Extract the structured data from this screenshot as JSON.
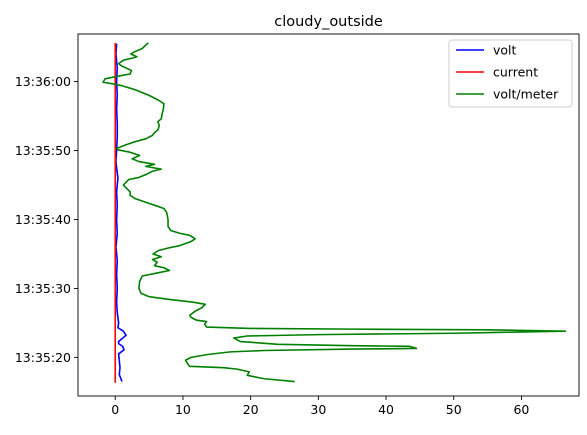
{
  "chart_data": {
    "type": "line",
    "title": "cloudy_outside",
    "xlabel": "",
    "ylabel": "",
    "xlim": [
      -5.5,
      68.5
    ],
    "ylim": [
      "13:35:14.4",
      "13:36:06.9"
    ],
    "xticks": [
      0,
      10,
      20,
      30,
      40,
      50,
      60
    ],
    "xtick_labels": [
      "0",
      "10",
      "20",
      "30",
      "40",
      "50",
      "60"
    ],
    "yticks": [
      "13:35:20",
      "13:35:30",
      "13:35:40",
      "13:35:50",
      "13:36:00"
    ],
    "ytick_labels": [
      "13:35:20",
      "13:35:30",
      "13:35:40",
      "13:35:50",
      "13:36:00"
    ],
    "legend_position": "top-right",
    "grid": false,
    "series": [
      {
        "name": "volt",
        "color": "#0000ff",
        "points": [
          [
            1.0,
            "13:35:16.5"
          ],
          [
            0.6,
            "13:35:17.5"
          ],
          [
            0.7,
            "13:35:18.5"
          ],
          [
            0.6,
            "13:35:19.5"
          ],
          [
            0.5,
            "13:35:20.5"
          ],
          [
            1.3,
            "13:35:21.1"
          ],
          [
            1.1,
            "13:35:21.6"
          ],
          [
            0.5,
            "13:35:22.0"
          ],
          [
            0.5,
            "13:35:22.3"
          ],
          [
            1.6,
            "13:35:23.2"
          ],
          [
            1.2,
            "13:35:23.8"
          ],
          [
            0.4,
            "13:35:24.3"
          ],
          [
            0.5,
            "13:35:25.0"
          ],
          [
            0.3,
            "13:35:26.5"
          ],
          [
            0.2,
            "13:35:28.0"
          ],
          [
            0.3,
            "13:35:30.0"
          ],
          [
            0.2,
            "13:35:32.0"
          ],
          [
            0.3,
            "13:35:34.0"
          ],
          [
            0.1,
            "13:35:36.0"
          ],
          [
            0.3,
            "13:35:38.0"
          ],
          [
            0.2,
            "13:35:40.0"
          ],
          [
            0.3,
            "13:35:42.0"
          ],
          [
            0.2,
            "13:35:44.0"
          ],
          [
            0.4,
            "13:35:46.0"
          ],
          [
            0.2,
            "13:35:47.5"
          ],
          [
            0.1,
            "13:35:48.5"
          ],
          [
            0.2,
            "13:35:50.0"
          ],
          [
            0.3,
            "13:35:52.0"
          ],
          [
            0.3,
            "13:35:54.0"
          ],
          [
            0.2,
            "13:35:56.0"
          ],
          [
            0.3,
            "13:35:58.0"
          ],
          [
            0.2,
            "13:36:00.0"
          ],
          [
            0.3,
            "13:36:02.0"
          ],
          [
            0.1,
            "13:36:04.0"
          ],
          [
            0.2,
            "13:36:05.5"
          ]
        ]
      },
      {
        "name": "current",
        "color": "#ff0000",
        "points": [
          [
            0.0,
            "13:35:16.3"
          ],
          [
            0.0,
            "13:36:05.6"
          ]
        ]
      },
      {
        "name": "volt/meter",
        "color": "#008000",
        "points": [
          [
            26.5,
            "13:35:16.5"
          ],
          [
            22.0,
            "13:35:16.9"
          ],
          [
            19.5,
            "13:35:17.4"
          ],
          [
            19.8,
            "13:35:17.9"
          ],
          [
            18.0,
            "13:35:18.3"
          ],
          [
            16.0,
            "13:35:18.5"
          ],
          [
            11.0,
            "13:35:18.7"
          ],
          [
            10.6,
            "13:35:19.2"
          ],
          [
            10.4,
            "13:35:19.6"
          ],
          [
            11.2,
            "13:35:20.0"
          ],
          [
            13.5,
            "13:35:20.4"
          ],
          [
            17.0,
            "13:35:20.8"
          ],
          [
            22.0,
            "13:35:21.0"
          ],
          [
            35.0,
            "13:35:21.2"
          ],
          [
            44.5,
            "13:35:21.3"
          ],
          [
            43.5,
            "13:35:21.6"
          ],
          [
            35.0,
            "13:35:21.7"
          ],
          [
            24.0,
            "13:35:21.9"
          ],
          [
            18.5,
            "13:35:22.3"
          ],
          [
            17.5,
            "13:35:22.8"
          ],
          [
            19.5,
            "13:35:23.1"
          ],
          [
            30.0,
            "13:35:23.3"
          ],
          [
            50.0,
            "13:35:23.5"
          ],
          [
            66.5,
            "13:35:23.8"
          ],
          [
            55.0,
            "13:35:24.0"
          ],
          [
            35.0,
            "13:35:24.1"
          ],
          [
            20.0,
            "13:35:24.2"
          ],
          [
            13.5,
            "13:35:24.4"
          ],
          [
            13.2,
            "13:35:24.8"
          ],
          [
            13.5,
            "13:35:25.2"
          ],
          [
            12.0,
            "13:35:25.4"
          ],
          [
            11.2,
            "13:35:25.8"
          ],
          [
            11.0,
            "13:35:26.1"
          ],
          [
            11.8,
            "13:35:26.7"
          ],
          [
            12.8,
            "13:35:27.2"
          ],
          [
            13.3,
            "13:35:27.7"
          ],
          [
            11.5,
            "13:35:28.0"
          ],
          [
            8.0,
            "13:35:28.4"
          ],
          [
            5.0,
            "13:35:28.8"
          ],
          [
            3.8,
            "13:35:29.3"
          ],
          [
            3.5,
            "13:35:30.0"
          ],
          [
            3.6,
            "13:35:31.0"
          ],
          [
            4.0,
            "13:35:31.8"
          ],
          [
            6.5,
            "13:35:32.3"
          ],
          [
            8.0,
            "13:35:32.6"
          ],
          [
            7.2,
            "13:35:33.0"
          ],
          [
            5.8,
            "13:35:33.3"
          ],
          [
            6.2,
            "13:35:33.8"
          ],
          [
            5.5,
            "13:35:34.2"
          ],
          [
            6.8,
            "13:35:34.6"
          ],
          [
            5.6,
            "13:35:35.0"
          ],
          [
            6.4,
            "13:35:35.5"
          ],
          [
            8.0,
            "13:35:35.9"
          ],
          [
            9.5,
            "13:35:36.2"
          ],
          [
            11.2,
            "13:35:36.8"
          ],
          [
            11.8,
            "13:35:37.2"
          ],
          [
            11.0,
            "13:35:37.7"
          ],
          [
            9.5,
            "13:35:38.0"
          ],
          [
            8.2,
            "13:35:38.4"
          ],
          [
            7.8,
            "13:35:39.0"
          ],
          [
            7.8,
            "13:35:40.0"
          ],
          [
            7.6,
            "13:35:41.0"
          ],
          [
            7.2,
            "13:35:41.6"
          ],
          [
            6.0,
            "13:35:42.0"
          ],
          [
            4.5,
            "13:35:42.5"
          ],
          [
            3.0,
            "13:35:43.0"
          ],
          [
            2.2,
            "13:35:43.5"
          ],
          [
            2.2,
            "13:35:44.0"
          ],
          [
            1.2,
            "13:35:45.0"
          ],
          [
            2.0,
            "13:35:45.8"
          ],
          [
            3.5,
            "13:35:46.1"
          ],
          [
            4.5,
            "13:35:46.5"
          ],
          [
            5.5,
            "13:35:47.0"
          ],
          [
            6.8,
            "13:35:47.3"
          ],
          [
            4.5,
            "13:35:47.7"
          ],
          [
            5.8,
            "13:35:48.0"
          ],
          [
            3.5,
            "13:35:48.4"
          ],
          [
            2.5,
            "13:35:48.8"
          ],
          [
            3.6,
            "13:35:49.3"
          ],
          [
            2.0,
            "13:35:49.8"
          ],
          [
            0.4,
            "13:35:50.1"
          ],
          [
            0.2,
            "13:35:50.3"
          ],
          [
            1.5,
            "13:35:50.8"
          ],
          [
            3.0,
            "13:35:51.3"
          ],
          [
            4.5,
            "13:35:51.7"
          ],
          [
            5.5,
            "13:35:52.2"
          ],
          [
            5.8,
            "13:35:52.6"
          ],
          [
            6.3,
            "13:35:53.0"
          ],
          [
            6.5,
            "13:35:53.6"
          ],
          [
            6.3,
            "13:35:54.2"
          ],
          [
            6.8,
            "13:35:54.6"
          ],
          [
            6.9,
            "13:35:55.2"
          ],
          [
            7.1,
            "13:35:56.0"
          ],
          [
            7.2,
            "13:35:56.8"
          ],
          [
            6.2,
            "13:35:57.4"
          ],
          [
            5.0,
            "13:35:58.0"
          ],
          [
            3.0,
            "13:35:58.8"
          ],
          [
            1.0,
            "13:35:59.4"
          ],
          [
            -0.5,
            "13:35:59.7"
          ],
          [
            -1.8,
            "13:35:59.9"
          ],
          [
            -1.5,
            "13:36:00.4"
          ],
          [
            0.5,
            "13:36:00.8"
          ],
          [
            2.2,
            "13:36:01.1"
          ],
          [
            2.4,
            "13:36:01.6"
          ],
          [
            0.9,
            "13:36:02.3"
          ],
          [
            0.5,
            "13:36:02.6"
          ],
          [
            1.2,
            "13:36:03.1"
          ],
          [
            2.5,
            "13:36:03.4"
          ],
          [
            3.2,
            "13:36:03.6"
          ],
          [
            2.3,
            "13:36:04.0"
          ],
          [
            2.8,
            "13:36:04.3"
          ],
          [
            4.0,
            "13:36:04.8"
          ],
          [
            4.5,
            "13:36:05.3"
          ],
          [
            4.9,
            "13:36:05.6"
          ]
        ]
      }
    ]
  }
}
